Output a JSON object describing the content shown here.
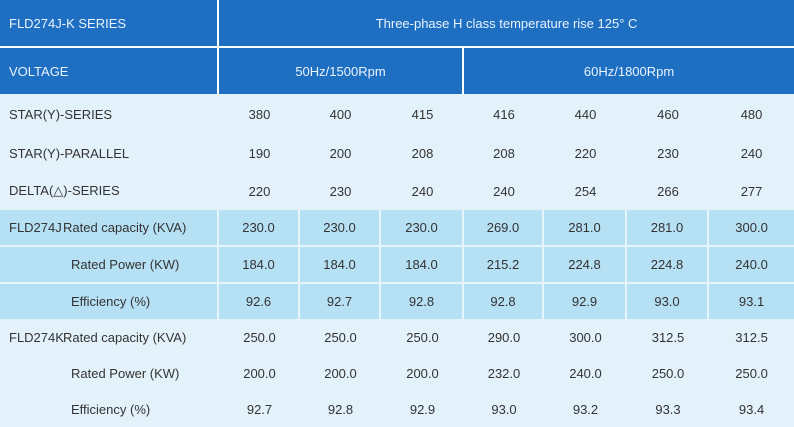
{
  "header": {
    "series_label": "FLD274J-K  SERIES",
    "title": "Three-phase H class temperature rise 125°  C",
    "voltage_label": "VOLTAGE",
    "freq_50": "50Hz/1500Rpm",
    "freq_60": "60Hz/1800Rpm"
  },
  "voltage_rows": [
    {
      "label": "STAR(Y)-SERIES",
      "values": [
        "380",
        "400",
        "415",
        "416",
        "440",
        "460",
        "480"
      ]
    },
    {
      "label": "STAR(Y)-PARALLEL",
      "values": [
        "190",
        "200",
        "208",
        "208",
        "220",
        "230",
        "240"
      ]
    },
    {
      "label": "DELTA(△)-SERIES",
      "values": [
        "220",
        "230",
        "240",
        "240",
        "254",
        "266",
        "277"
      ]
    }
  ],
  "models": [
    {
      "name": "FLD274J",
      "rows": [
        {
          "label": "Rated capacity (KVA)",
          "values": [
            "230.0",
            "230.0",
            "230.0",
            "269.0",
            "281.0",
            "281.0",
            "300.0"
          ]
        },
        {
          "label": "Rated Power (KW)",
          "values": [
            "184.0",
            "184.0",
            "184.0",
            "215.2",
            "224.8",
            "224.8",
            "240.0"
          ]
        },
        {
          "label": "Efficiency (%)",
          "values": [
            "92.6",
            "92.7",
            "92.8",
            "92.8",
            "92.9",
            "93.0",
            "93.1"
          ]
        }
      ]
    },
    {
      "name": "FLD274K",
      "rows": [
        {
          "label": "Rated capacity (KVA)",
          "values": [
            "250.0",
            "250.0",
            "250.0",
            "290.0",
            "300.0",
            "312.5",
            "312.5"
          ]
        },
        {
          "label": "Rated Power (KW)",
          "values": [
            "200.0",
            "200.0",
            "200.0",
            "232.0",
            "240.0",
            "250.0",
            "250.0"
          ]
        },
        {
          "label": "Efficiency (%)",
          "values": [
            "92.7",
            "92.8",
            "92.9",
            "93.0",
            "93.2",
            "93.3",
            "93.4"
          ]
        }
      ]
    }
  ]
}
